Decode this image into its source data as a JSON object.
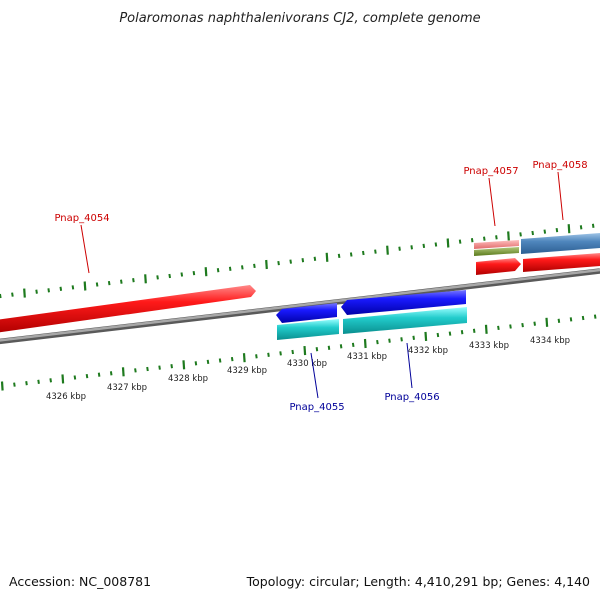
{
  "title": "Polaromonas naphthalenivorans CJ2, complete genome",
  "footer": {
    "accession": "Accession: NC_008781",
    "summary": "Topology: circular; Length: 4,410,291 bp; Genes: 4,140"
  },
  "colors": {
    "backbone": "#8a8a8a",
    "tick": "#1e7a1e",
    "forward_gene": "#ee1111",
    "reverse_gene": "#1111ee",
    "reverse_cds": "#22cccc",
    "forward_label": "#cc0000",
    "reverse_label": "#000099"
  },
  "scale": {
    "unit": "kbp",
    "labels": [
      "4326 kbp",
      "4327 kbp",
      "4328 kbp",
      "4329 kbp",
      "4330 kbp",
      "4331 kbp",
      "4332 kbp",
      "4333 kbp",
      "4334 kbp"
    ]
  },
  "genes": [
    {
      "name": "Pnap_4054",
      "strand": "forward"
    },
    {
      "name": "Pnap_4055",
      "strand": "reverse"
    },
    {
      "name": "Pnap_4056",
      "strand": "reverse"
    },
    {
      "name": "Pnap_4057",
      "strand": "forward"
    },
    {
      "name": "Pnap_4058",
      "strand": "forward"
    }
  ]
}
